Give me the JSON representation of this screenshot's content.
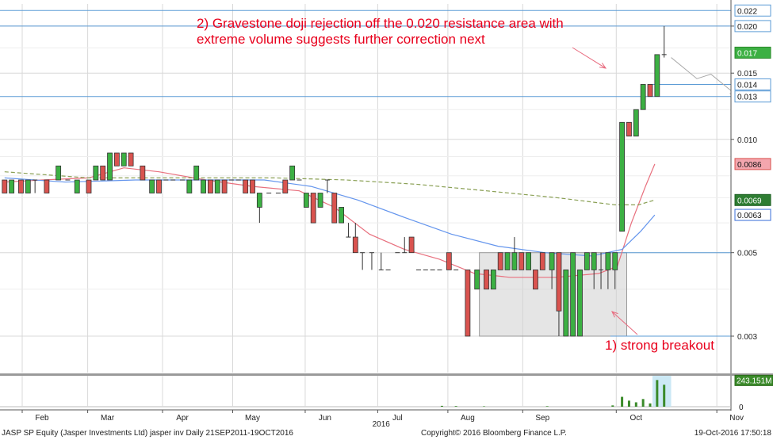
{
  "chart_data": {
    "type": "candlestick",
    "y_axis_side": "right",
    "ylim": [
      0.0024,
      0.0229
    ],
    "y_ticks": [
      "0.003",
      "0.005",
      "0.010",
      "0.015",
      "0.020"
    ],
    "price_tags": [
      {
        "label": "0.022",
        "value": 0.022,
        "style": "line"
      },
      {
        "label": "0.020",
        "value": 0.02,
        "style": "line"
      },
      {
        "label": "0.017",
        "value": 0.017,
        "style": "green"
      },
      {
        "label": "0.014",
        "value": 0.014,
        "style": "line"
      },
      {
        "label": "0.013",
        "value": 0.013,
        "style": "line"
      },
      {
        "label": "0.0086",
        "value": 0.0086,
        "style": "red"
      },
      {
        "label": "0.0069",
        "value": 0.0069,
        "style": "darkgreen"
      },
      {
        "label": "0.0063",
        "value": 0.0063,
        "style": "blue"
      }
    ],
    "horizontal_lines": [
      0.022,
      0.02,
      0.014,
      0.013,
      0.005,
      0.003
    ],
    "x_axis_labels": [
      {
        "label": "Feb",
        "day": 20
      },
      {
        "label": "Mar",
        "day": 48
      },
      {
        "label": "Apr",
        "day": 80
      },
      {
        "label": "May",
        "day": 110
      },
      {
        "label": "Jun",
        "day": 141
      },
      {
        "label": "Jul",
        "day": 172
      },
      {
        "label": "Aug",
        "day": 202
      },
      {
        "label": "Sep",
        "day": 234
      },
      {
        "label": "Oct",
        "day": 274
      },
      {
        "label": "Nov",
        "day": 317
      }
    ],
    "year_label": {
      "label": "2016",
      "day": 165
    },
    "candles": [
      {
        "day": 4,
        "open": 0.0078,
        "high": 0.0078,
        "low": 0.0072,
        "close": 0.0072
      },
      {
        "day": 7,
        "open": 0.0072,
        "high": 0.0078,
        "low": 0.0072,
        "close": 0.0078
      },
      {
        "day": 11,
        "open": 0.0078,
        "high": 0.0078,
        "low": 0.0072,
        "close": 0.0072
      },
      {
        "day": 14,
        "open": 0.0072,
        "high": 0.0078,
        "low": 0.0072,
        "close": 0.0078
      },
      {
        "day": 17,
        "open": 0.0078,
        "high": 0.0078,
        "low": 0.0072,
        "close": 0.0078
      },
      {
        "day": 22,
        "open": 0.0078,
        "high": 0.0078,
        "low": 0.0072,
        "close": 0.0072
      },
      {
        "day": 27,
        "open": 0.0078,
        "high": 0.0085,
        "low": 0.0078,
        "close": 0.0085
      },
      {
        "day": 31,
        "open": 0.0078,
        "high": 0.0078,
        "low": 0.0078,
        "close": 0.0078
      },
      {
        "day": 35,
        "open": 0.0072,
        "high": 0.0078,
        "low": 0.0072,
        "close": 0.0078
      },
      {
        "day": 40,
        "open": 0.0078,
        "high": 0.0078,
        "low": 0.0072,
        "close": 0.0072
      },
      {
        "day": 43,
        "open": 0.0078,
        "high": 0.0085,
        "low": 0.0078,
        "close": 0.0085
      },
      {
        "day": 46,
        "open": 0.0085,
        "high": 0.0085,
        "low": 0.0078,
        "close": 0.0078
      },
      {
        "day": 49,
        "open": 0.0078,
        "high": 0.0092,
        "low": 0.0078,
        "close": 0.0092
      },
      {
        "day": 52,
        "open": 0.0092,
        "high": 0.0092,
        "low": 0.0085,
        "close": 0.0085
      },
      {
        "day": 55,
        "open": 0.0085,
        "high": 0.0092,
        "low": 0.0085,
        "close": 0.0092
      },
      {
        "day": 58,
        "open": 0.0092,
        "high": 0.0092,
        "low": 0.0085,
        "close": 0.0085
      },
      {
        "day": 63,
        "open": 0.0085,
        "high": 0.0085,
        "low": 0.0078,
        "close": 0.0078
      },
      {
        "day": 67,
        "open": 0.0072,
        "high": 0.0078,
        "low": 0.0072,
        "close": 0.0078
      },
      {
        "day": 70,
        "open": 0.0078,
        "high": 0.0078,
        "low": 0.0072,
        "close": 0.0072
      },
      {
        "day": 73,
        "open": 0.0078,
        "high": 0.0078,
        "low": 0.0078,
        "close": 0.0078
      },
      {
        "day": 76,
        "open": 0.0078,
        "high": 0.0078,
        "low": 0.0078,
        "close": 0.0078
      },
      {
        "day": 80,
        "open": 0.0078,
        "high": 0.0078,
        "low": 0.0078,
        "close": 0.0078
      },
      {
        "day": 83,
        "open": 0.0072,
        "high": 0.0078,
        "low": 0.0072,
        "close": 0.0078
      },
      {
        "day": 86,
        "open": 0.0078,
        "high": 0.0085,
        "low": 0.0078,
        "close": 0.0085
      },
      {
        "day": 89,
        "open": 0.0072,
        "high": 0.0078,
        "low": 0.0072,
        "close": 0.0078
      },
      {
        "day": 92,
        "open": 0.0078,
        "high": 0.0078,
        "low": 0.0072,
        "close": 0.0072
      },
      {
        "day": 95,
        "open": 0.0072,
        "high": 0.0078,
        "low": 0.0072,
        "close": 0.0078
      },
      {
        "day": 98,
        "open": 0.0078,
        "high": 0.0078,
        "low": 0.0072,
        "close": 0.0072
      },
      {
        "day": 101,
        "open": 0.0078,
        "high": 0.0078,
        "low": 0.0078,
        "close": 0.0078
      },
      {
        "day": 104,
        "open": 0.0078,
        "high": 0.0078,
        "low": 0.0078,
        "close": 0.0078
      },
      {
        "day": 107,
        "open": 0.0078,
        "high": 0.0078,
        "low": 0.0072,
        "close": 0.0072
      },
      {
        "day": 110,
        "open": 0.0078,
        "high": 0.0078,
        "low": 0.0072,
        "close": 0.0072
      },
      {
        "day": 113,
        "open": 0.0066,
        "high": 0.0072,
        "low": 0.006,
        "close": 0.0072
      },
      {
        "day": 117,
        "open": 0.0072,
        "high": 0.0072,
        "low": 0.0072,
        "close": 0.0072
      },
      {
        "day": 121,
        "open": 0.0072,
        "high": 0.0072,
        "low": 0.0072,
        "close": 0.0072
      },
      {
        "day": 124,
        "open": 0.0078,
        "high": 0.0078,
        "low": 0.0072,
        "close": 0.0072
      },
      {
        "day": 127,
        "open": 0.0078,
        "high": 0.0085,
        "low": 0.0078,
        "close": 0.0085
      },
      {
        "day": 130,
        "open": 0.0078,
        "high": 0.0078,
        "low": 0.0078,
        "close": 0.0078
      },
      {
        "day": 133,
        "open": 0.0066,
        "high": 0.0072,
        "low": 0.0066,
        "close": 0.0072
      },
      {
        "day": 136,
        "open": 0.0072,
        "high": 0.0072,
        "low": 0.006,
        "close": 0.006
      },
      {
        "day": 139,
        "open": 0.0066,
        "high": 0.0072,
        "low": 0.0066,
        "close": 0.0072
      },
      {
        "day": 142,
        "open": 0.0078,
        "high": 0.0078,
        "low": 0.0072,
        "close": 0.0078
      },
      {
        "day": 145,
        "open": 0.0072,
        "high": 0.0072,
        "low": 0.006,
        "close": 0.006
      },
      {
        "day": 148,
        "open": 0.006,
        "high": 0.0066,
        "low": 0.006,
        "close": 0.0066
      },
      {
        "day": 151,
        "open": 0.0055,
        "high": 0.006,
        "low": 0.0055,
        "close": 0.0055
      },
      {
        "day": 154,
        "open": 0.0055,
        "high": 0.006,
        "low": 0.005,
        "close": 0.005
      },
      {
        "day": 157,
        "open": 0.005,
        "high": 0.005,
        "low": 0.0045,
        "close": 0.005
      },
      {
        "day": 161,
        "open": 0.005,
        "high": 0.005,
        "low": 0.0045,
        "close": 0.005
      },
      {
        "day": 165,
        "open": 0.0045,
        "high": 0.005,
        "low": 0.0045,
        "close": 0.0045
      },
      {
        "day": 168,
        "open": 0.0045,
        "high": 0.0045,
        "low": 0.0045,
        "close": 0.0045
      },
      {
        "day": 172,
        "open": 0.005,
        "high": 0.005,
        "low": 0.005,
        "close": 0.005
      },
      {
        "day": 175,
        "open": 0.005,
        "high": 0.0055,
        "low": 0.005,
        "close": 0.005
      },
      {
        "day": 178,
        "open": 0.0055,
        "high": 0.0055,
        "low": 0.005,
        "close": 0.005
      },
      {
        "day": 181,
        "open": 0.0045,
        "high": 0.0045,
        "low": 0.0045,
        "close": 0.0045
      },
      {
        "day": 184,
        "open": 0.0045,
        "high": 0.0045,
        "low": 0.0045,
        "close": 0.0045
      },
      {
        "day": 187,
        "open": 0.0045,
        "high": 0.0045,
        "low": 0.0045,
        "close": 0.0045
      },
      {
        "day": 190,
        "open": 0.0045,
        "high": 0.0045,
        "low": 0.0045,
        "close": 0.0045
      },
      {
        "day": 194,
        "open": 0.005,
        "high": 0.005,
        "low": 0.0045,
        "close": 0.0045
      },
      {
        "day": 197,
        "open": 0.0045,
        "high": 0.0045,
        "low": 0.0045,
        "close": 0.0045
      },
      {
        "day": 202,
        "open": 0.0045,
        "high": 0.0045,
        "low": 0.003,
        "close": 0.003
      },
      {
        "day": 206,
        "open": 0.004,
        "high": 0.0045,
        "low": 0.004,
        "close": 0.0045
      },
      {
        "day": 210,
        "open": 0.0045,
        "high": 0.0045,
        "low": 0.004,
        "close": 0.004
      },
      {
        "day": 213,
        "open": 0.004,
        "high": 0.0045,
        "low": 0.004,
        "close": 0.0045
      },
      {
        "day": 216,
        "open": 0.005,
        "high": 0.005,
        "low": 0.0045,
        "close": 0.0045
      },
      {
        "day": 219,
        "open": 0.0045,
        "high": 0.005,
        "low": 0.0045,
        "close": 0.005
      },
      {
        "day": 222,
        "open": 0.0045,
        "high": 0.0055,
        "low": 0.0045,
        "close": 0.005
      },
      {
        "day": 225,
        "open": 0.005,
        "high": 0.005,
        "low": 0.0045,
        "close": 0.0045
      },
      {
        "day": 228,
        "open": 0.0045,
        "high": 0.005,
        "low": 0.0045,
        "close": 0.005
      },
      {
        "day": 231,
        "open": 0.0045,
        "high": 0.0045,
        "low": 0.004,
        "close": 0.004
      },
      {
        "day": 234,
        "open": 0.005,
        "high": 0.005,
        "low": 0.0045,
        "close": 0.0045
      },
      {
        "day": 238,
        "open": 0.0045,
        "high": 0.005,
        "low": 0.004,
        "close": 0.005
      },
      {
        "day": 241,
        "open": 0.005,
        "high": 0.005,
        "low": 0.003,
        "close": 0.0035
      },
      {
        "day": 244,
        "open": 0.003,
        "high": 0.0045,
        "low": 0.003,
        "close": 0.0045
      },
      {
        "day": 247,
        "open": 0.003,
        "high": 0.005,
        "low": 0.003,
        "close": 0.005
      },
      {
        "day": 250,
        "open": 0.003,
        "high": 0.0045,
        "low": 0.003,
        "close": 0.0045
      },
      {
        "day": 253,
        "open": 0.0045,
        "high": 0.005,
        "low": 0.0045,
        "close": 0.005
      },
      {
        "day": 256,
        "open": 0.0045,
        "high": 0.005,
        "low": 0.004,
        "close": 0.005
      },
      {
        "day": 259,
        "open": 0.0045,
        "high": 0.005,
        "low": 0.004,
        "close": 0.0045
      },
      {
        "day": 262,
        "open": 0.0045,
        "high": 0.005,
        "low": 0.004,
        "close": 0.005
      },
      {
        "day": 265,
        "open": 0.0045,
        "high": 0.005,
        "low": 0.004,
        "close": 0.005
      },
      {
        "day": 268,
        "open": 0.0057,
        "high": 0.0111,
        "low": 0.0057,
        "close": 0.0111
      },
      {
        "day": 271,
        "open": 0.0111,
        "high": 0.0111,
        "low": 0.0102,
        "close": 0.0102
      },
      {
        "day": 274,
        "open": 0.0102,
        "high": 0.012,
        "low": 0.0102,
        "close": 0.012
      },
      {
        "day": 277,
        "open": 0.012,
        "high": 0.014,
        "low": 0.012,
        "close": 0.014
      },
      {
        "day": 280,
        "open": 0.014,
        "high": 0.014,
        "low": 0.013,
        "close": 0.013
      },
      {
        "day": 283,
        "open": 0.013,
        "high": 0.0168,
        "low": 0.013,
        "close": 0.0168
      },
      {
        "day": 286,
        "open": 0.0168,
        "high": 0.02,
        "low": 0.0165,
        "close": 0.0168
      }
    ],
    "moving_averages": [
      {
        "color": "#e8707e",
        "style": "solid",
        "points": [
          [
            4,
            0.0077
          ],
          [
            20,
            0.0078
          ],
          [
            40,
            0.0079
          ],
          [
            55,
            0.0084
          ],
          [
            70,
            0.0082
          ],
          [
            90,
            0.0078
          ],
          [
            110,
            0.0075
          ],
          [
            130,
            0.0073
          ],
          [
            145,
            0.0066
          ],
          [
            160,
            0.0056
          ],
          [
            175,
            0.0051
          ],
          [
            190,
            0.0048
          ],
          [
            205,
            0.0044
          ],
          [
            220,
            0.0043
          ],
          [
            240,
            0.0043
          ],
          [
            258,
            0.0044
          ],
          [
            266,
            0.0046
          ],
          [
            272,
            0.006
          ],
          [
            278,
            0.0075
          ],
          [
            282,
            0.0086
          ]
        ]
      },
      {
        "color": "#6495ed",
        "style": "solid",
        "points": [
          [
            4,
            0.0079
          ],
          [
            30,
            0.0077
          ],
          [
            60,
            0.0078
          ],
          [
            90,
            0.0078
          ],
          [
            115,
            0.0078
          ],
          [
            135,
            0.0075
          ],
          [
            155,
            0.0069
          ],
          [
            175,
            0.0062
          ],
          [
            195,
            0.0056
          ],
          [
            215,
            0.0052
          ],
          [
            235,
            0.005
          ],
          [
            255,
            0.0049
          ],
          [
            268,
            0.0051
          ],
          [
            276,
            0.0057
          ],
          [
            282,
            0.0063
          ]
        ]
      },
      {
        "color": "#8aa055",
        "style": "dashed",
        "points": [
          [
            4,
            0.0082
          ],
          [
            40,
            0.0079
          ],
          [
            80,
            0.0079
          ],
          [
            120,
            0.0079
          ],
          [
            150,
            0.0078
          ],
          [
            180,
            0.0076
          ],
          [
            210,
            0.0073
          ],
          [
            240,
            0.007
          ],
          [
            265,
            0.0067
          ],
          [
            275,
            0.0067
          ],
          [
            282,
            0.0069
          ]
        ]
      }
    ],
    "consolidation_box": {
      "x0": 207,
      "x1": 270,
      "y0": 0.003,
      "y1": 0.005
    },
    "forecast_path": [
      [
        289,
        0.0165
      ],
      [
        300,
        0.0145
      ],
      [
        306,
        0.0149
      ],
      [
        317,
        0.0131
      ]
    ],
    "volume": {
      "ylabel_value": "243.151M",
      "ylabel_zero": "0",
      "ymax": 260,
      "bars": [
        {
          "day": 191,
          "value": 8
        },
        {
          "day": 197,
          "value": 6
        },
        {
          "day": 209,
          "value": 4
        },
        {
          "day": 236,
          "value": 5
        },
        {
          "day": 264,
          "value": 12
        },
        {
          "day": 268,
          "value": 90
        },
        {
          "day": 271,
          "value": 55
        },
        {
          "day": 274,
          "value": 40
        },
        {
          "day": 277,
          "value": 70
        },
        {
          "day": 280,
          "value": 30
        },
        {
          "day": 283,
          "value": 243
        },
        {
          "day": 286,
          "value": 200
        }
      ],
      "highlight": {
        "x0": 281,
        "x1": 289
      }
    },
    "annotations": [
      {
        "id": "gravestone",
        "lines": [
          "2) Gravestone doji rejection off the 0.020 resistance area with",
          "extreme volume suggests further correction next"
        ]
      },
      {
        "id": "breakout",
        "lines": [
          "1) strong breakout"
        ]
      }
    ]
  },
  "footer": {
    "left": "JASP SP Equity (Jasper Investments Ltd) jasper inv  Daily 21SEP2011-19OCT2016",
    "center": "Copyright© 2016 Bloomberg Finance L.P.",
    "right": "19-Oct-2016 17:50:18"
  },
  "colors": {
    "up": "#3cb043",
    "down": "#d9534f",
    "grid": "#d8d8d8",
    "hline": "#5b9bd5",
    "annotation": "#e8001c",
    "arrow": "#e86a7e",
    "forecast": "#aaaaaa",
    "volume": "#3a8a2a"
  }
}
